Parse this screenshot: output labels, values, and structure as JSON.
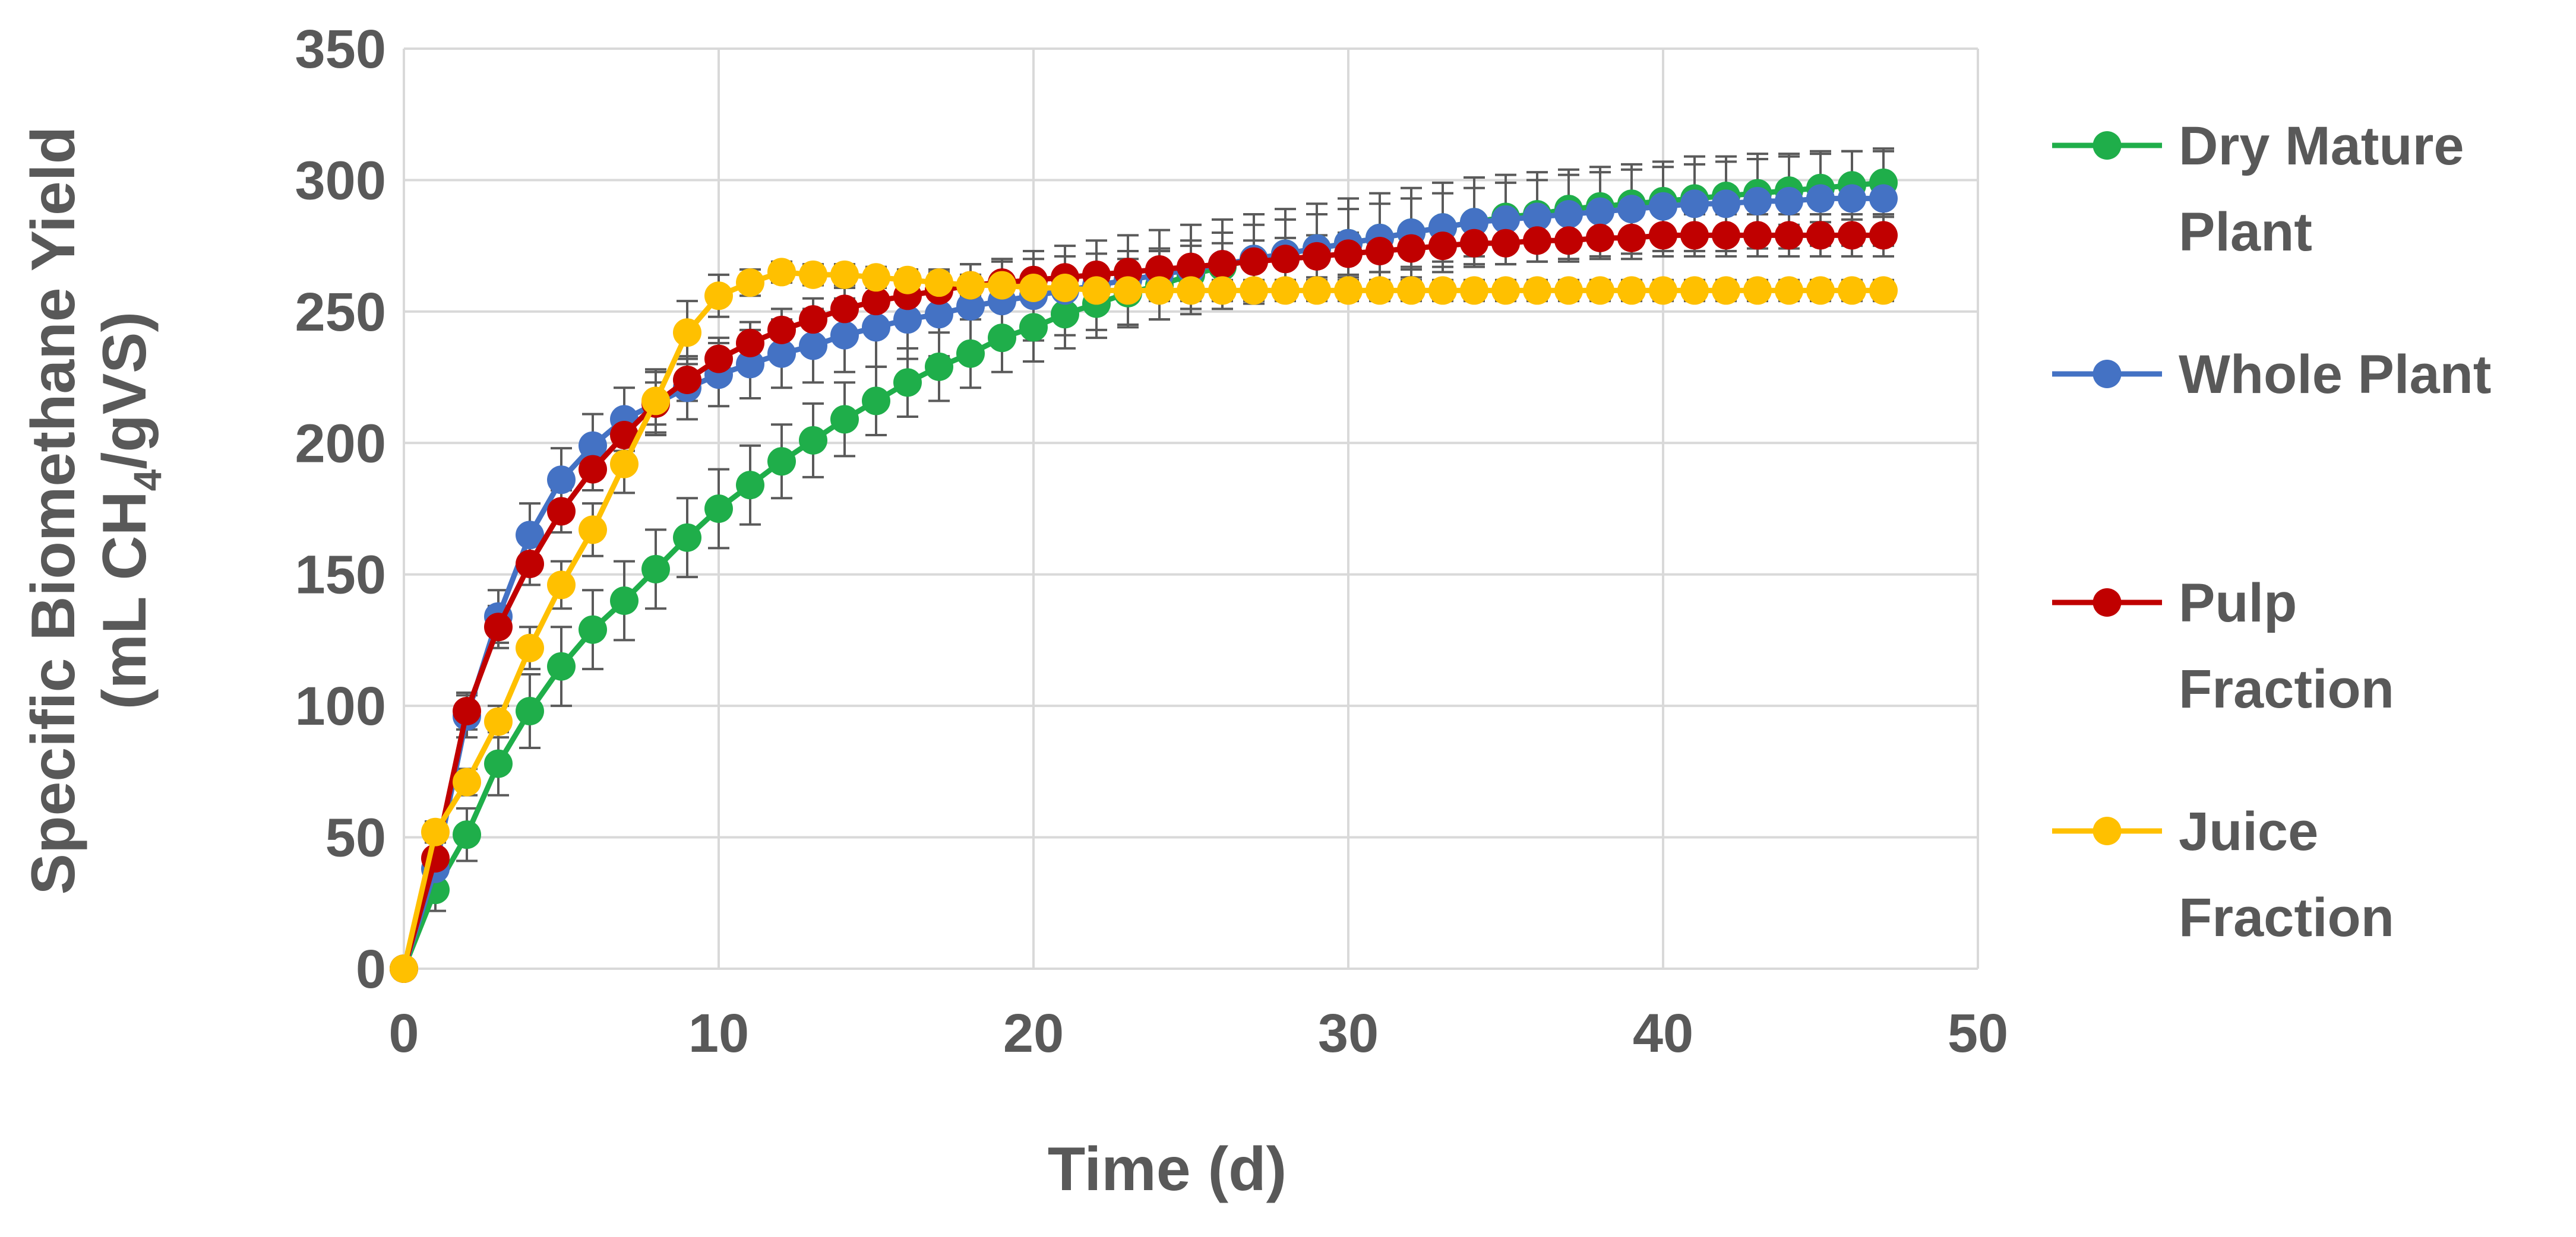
{
  "chart_data": {
    "type": "line",
    "title": "",
    "xlabel": "Time (d)",
    "ylabel_line1": "Specific Biomethane Yield",
    "ylabel_line2_prefix": "(mL CH",
    "ylabel_line2_sub": "4",
    "ylabel_line2_suffix": "/gVS)",
    "xlim": [
      0,
      50
    ],
    "ylim": [
      0,
      350
    ],
    "xticks": [
      0,
      10,
      20,
      30,
      40,
      50
    ],
    "yticks": [
      0,
      50,
      100,
      150,
      200,
      250,
      300,
      350
    ],
    "grid": true,
    "legend_position": "right",
    "x": [
      0,
      1,
      2,
      3,
      4,
      5,
      6,
      7,
      8,
      9,
      10,
      11,
      12,
      13,
      14,
      15,
      16,
      17,
      18,
      19,
      20,
      21,
      22,
      23,
      24,
      25,
      26,
      27,
      28,
      29,
      30,
      31,
      32,
      33,
      34,
      35,
      36,
      37,
      38,
      39,
      40,
      41,
      42,
      43,
      44,
      45,
      46,
      47
    ],
    "series": [
      {
        "name": "Dry Mature Plant",
        "legend_lines": [
          "Dry Mature",
          "Plant"
        ],
        "color": "#1fae4a",
        "values": [
          0,
          30,
          51,
          78,
          98,
          115,
          129,
          140,
          152,
          164,
          175,
          184,
          193,
          201,
          209,
          216,
          223,
          229,
          234,
          240,
          244,
          249,
          253,
          257,
          260,
          264,
          267,
          270,
          272,
          274,
          276,
          278,
          280,
          282,
          284,
          286,
          287,
          289,
          290,
          291,
          292,
          293,
          294,
          295,
          296,
          297,
          298,
          299
        ],
        "errors": [
          0,
          8,
          10,
          12,
          14,
          15,
          15,
          15,
          15,
          15,
          15,
          15,
          14,
          14,
          14,
          13,
          13,
          13,
          13,
          13,
          13,
          13,
          13,
          13,
          13,
          13,
          13,
          13,
          13,
          13,
          13,
          13,
          13,
          13,
          13,
          13,
          13,
          13,
          13,
          13,
          13,
          13,
          13,
          13,
          13,
          13,
          13,
          13
        ]
      },
      {
        "name": "Whole  Plant",
        "legend_lines": [
          "Whole  Plant"
        ],
        "color": "#4472c4",
        "values": [
          0,
          38,
          96,
          134,
          165,
          186,
          199,
          209,
          215,
          221,
          226,
          230,
          234,
          237,
          241,
          244,
          247,
          249,
          252,
          254,
          256,
          258,
          260,
          262,
          264,
          266,
          268,
          270,
          272,
          274,
          276,
          278,
          280,
          282,
          284,
          285,
          286,
          287,
          288,
          289,
          290,
          291,
          291,
          292,
          292,
          293,
          293,
          293
        ],
        "errors": [
          0,
          6,
          8,
          10,
          12,
          12,
          12,
          12,
          12,
          12,
          12,
          13,
          13,
          14,
          14,
          15,
          15,
          16,
          16,
          16,
          17,
          17,
          17,
          17,
          17,
          17,
          17,
          17,
          17,
          17,
          17,
          17,
          17,
          17,
          17,
          17,
          17,
          17,
          17,
          17,
          17,
          18,
          18,
          18,
          18,
          18,
          18,
          18
        ]
      },
      {
        "name": "Pulp Fraction",
        "legend_lines": [
          "Pulp",
          "Fraction"
        ],
        "color": "#c00000",
        "values": [
          0,
          42,
          98,
          130,
          154,
          174,
          190,
          203,
          215,
          224,
          232,
          238,
          243,
          247,
          251,
          254,
          256,
          258,
          260,
          261,
          262,
          263,
          264,
          265,
          266,
          267,
          268,
          269,
          270,
          271,
          272,
          273,
          274,
          275,
          276,
          276,
          277,
          277,
          278,
          278,
          279,
          279,
          279,
          279,
          279,
          279,
          279,
          279
        ],
        "errors": [
          0,
          6,
          7,
          8,
          8,
          8,
          8,
          8,
          8,
          8,
          8,
          8,
          8,
          8,
          8,
          8,
          8,
          8,
          8,
          8,
          8,
          8,
          8,
          8,
          8,
          8,
          8,
          8,
          8,
          8,
          8,
          8,
          8,
          8,
          8,
          8,
          8,
          8,
          8,
          8,
          8,
          8,
          8,
          8,
          8,
          8,
          8,
          8
        ]
      },
      {
        "name": "Juice Fraction",
        "legend_lines": [
          "Juice",
          "Fraction"
        ],
        "color": "#ffc000",
        "values": [
          0,
          52,
          71,
          94,
          122,
          146,
          167,
          192,
          216,
          242,
          256,
          261,
          265,
          264,
          264,
          263,
          262,
          261,
          260,
          260,
          259,
          259,
          258,
          258,
          258,
          258,
          258,
          258,
          258,
          258,
          258,
          258,
          258,
          258,
          258,
          258,
          258,
          258,
          258,
          258,
          258,
          258,
          258,
          258,
          258,
          258,
          258,
          258
        ],
        "errors": [
          0,
          4,
          5,
          6,
          8,
          9,
          10,
          11,
          12,
          12,
          8,
          5,
          4,
          4,
          4,
          4,
          4,
          4,
          4,
          4,
          4,
          4,
          4,
          4,
          4,
          4,
          4,
          4,
          4,
          4,
          4,
          4,
          4,
          4,
          4,
          4,
          4,
          4,
          4,
          4,
          4,
          4,
          4,
          4,
          4,
          4,
          4,
          4
        ]
      }
    ]
  }
}
